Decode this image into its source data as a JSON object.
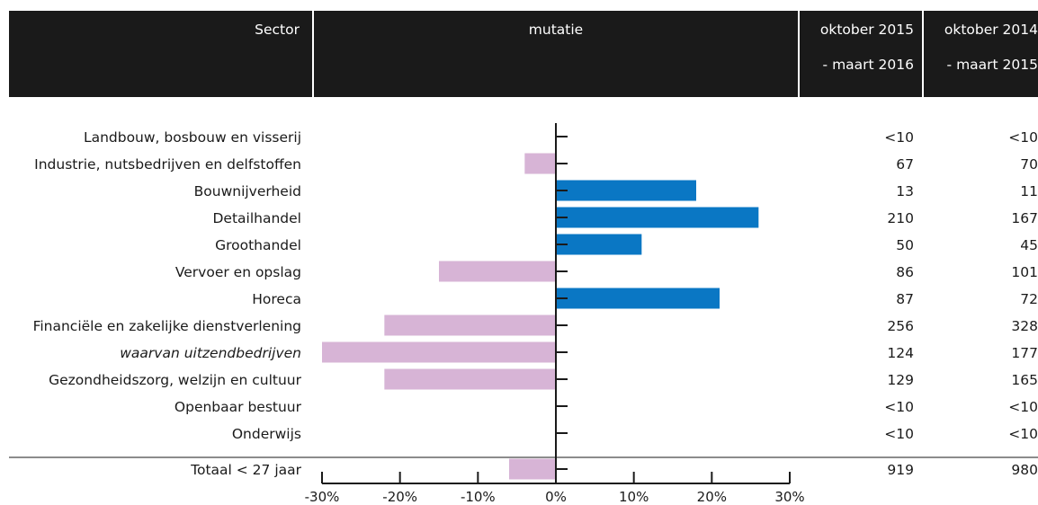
{
  "header": {
    "sector": "Sector",
    "mutatie": "mutatie",
    "col1_line1": "oktober 2015",
    "col1_line2": "- maart 2016",
    "col2_line1": "oktober 2014",
    "col2_line2": "- maart 2015"
  },
  "colors": {
    "header_bg": "#1a1a1a",
    "positive": "#0a77c4",
    "negative": "#d7b4d6"
  },
  "chart_data": {
    "type": "bar",
    "orientation": "horizontal",
    "xlim": [
      -30,
      30
    ],
    "xticks": [
      "-30%",
      "-20%",
      "-10%",
      "0%",
      "10%",
      "20%",
      "30%"
    ],
    "tick_values": [
      -30,
      -20,
      -10,
      0,
      10,
      20,
      30
    ],
    "rows": [
      {
        "sector": "Landbouw, bosbouw en visserij",
        "mutation": 0,
        "v2016": "<10",
        "v2015": "<10",
        "italic": false
      },
      {
        "sector": "Industrie, nutsbedrijven en delfstoffen",
        "mutation": -4,
        "v2016": "67",
        "v2015": "70",
        "italic": false
      },
      {
        "sector": "Bouwnijverheid",
        "mutation": 18,
        "v2016": "13",
        "v2015": "11",
        "italic": false
      },
      {
        "sector": "Detailhandel",
        "mutation": 26,
        "v2016": "210",
        "v2015": "167",
        "italic": false
      },
      {
        "sector": "Groothandel",
        "mutation": 11,
        "v2016": "50",
        "v2015": "45",
        "italic": false
      },
      {
        "sector": "Vervoer en opslag",
        "mutation": -15,
        "v2016": "86",
        "v2015": "101",
        "italic": false
      },
      {
        "sector": "Horeca",
        "mutation": 21,
        "v2016": "87",
        "v2015": "72",
        "italic": false
      },
      {
        "sector": "Financiële en zakelijke dienstverlening",
        "mutation": -22,
        "v2016": "256",
        "v2015": "328",
        "italic": false
      },
      {
        "sector": "waarvan uitzendbedrijven",
        "mutation": -30,
        "v2016": "124",
        "v2015": "177",
        "italic": true
      },
      {
        "sector": "Gezondheidszorg, welzijn en cultuur",
        "mutation": -22,
        "v2016": "129",
        "v2015": "165",
        "italic": false
      },
      {
        "sector": "Openbaar bestuur",
        "mutation": 0,
        "v2016": "<10",
        "v2015": "<10",
        "italic": false
      },
      {
        "sector": "Onderwijs",
        "mutation": 0,
        "v2016": "<10",
        "v2015": "<10",
        "italic": false
      }
    ],
    "total": {
      "sector": "Totaal < 27 jaar",
      "mutation": -6,
      "v2016": "919",
      "v2015": "980"
    }
  }
}
